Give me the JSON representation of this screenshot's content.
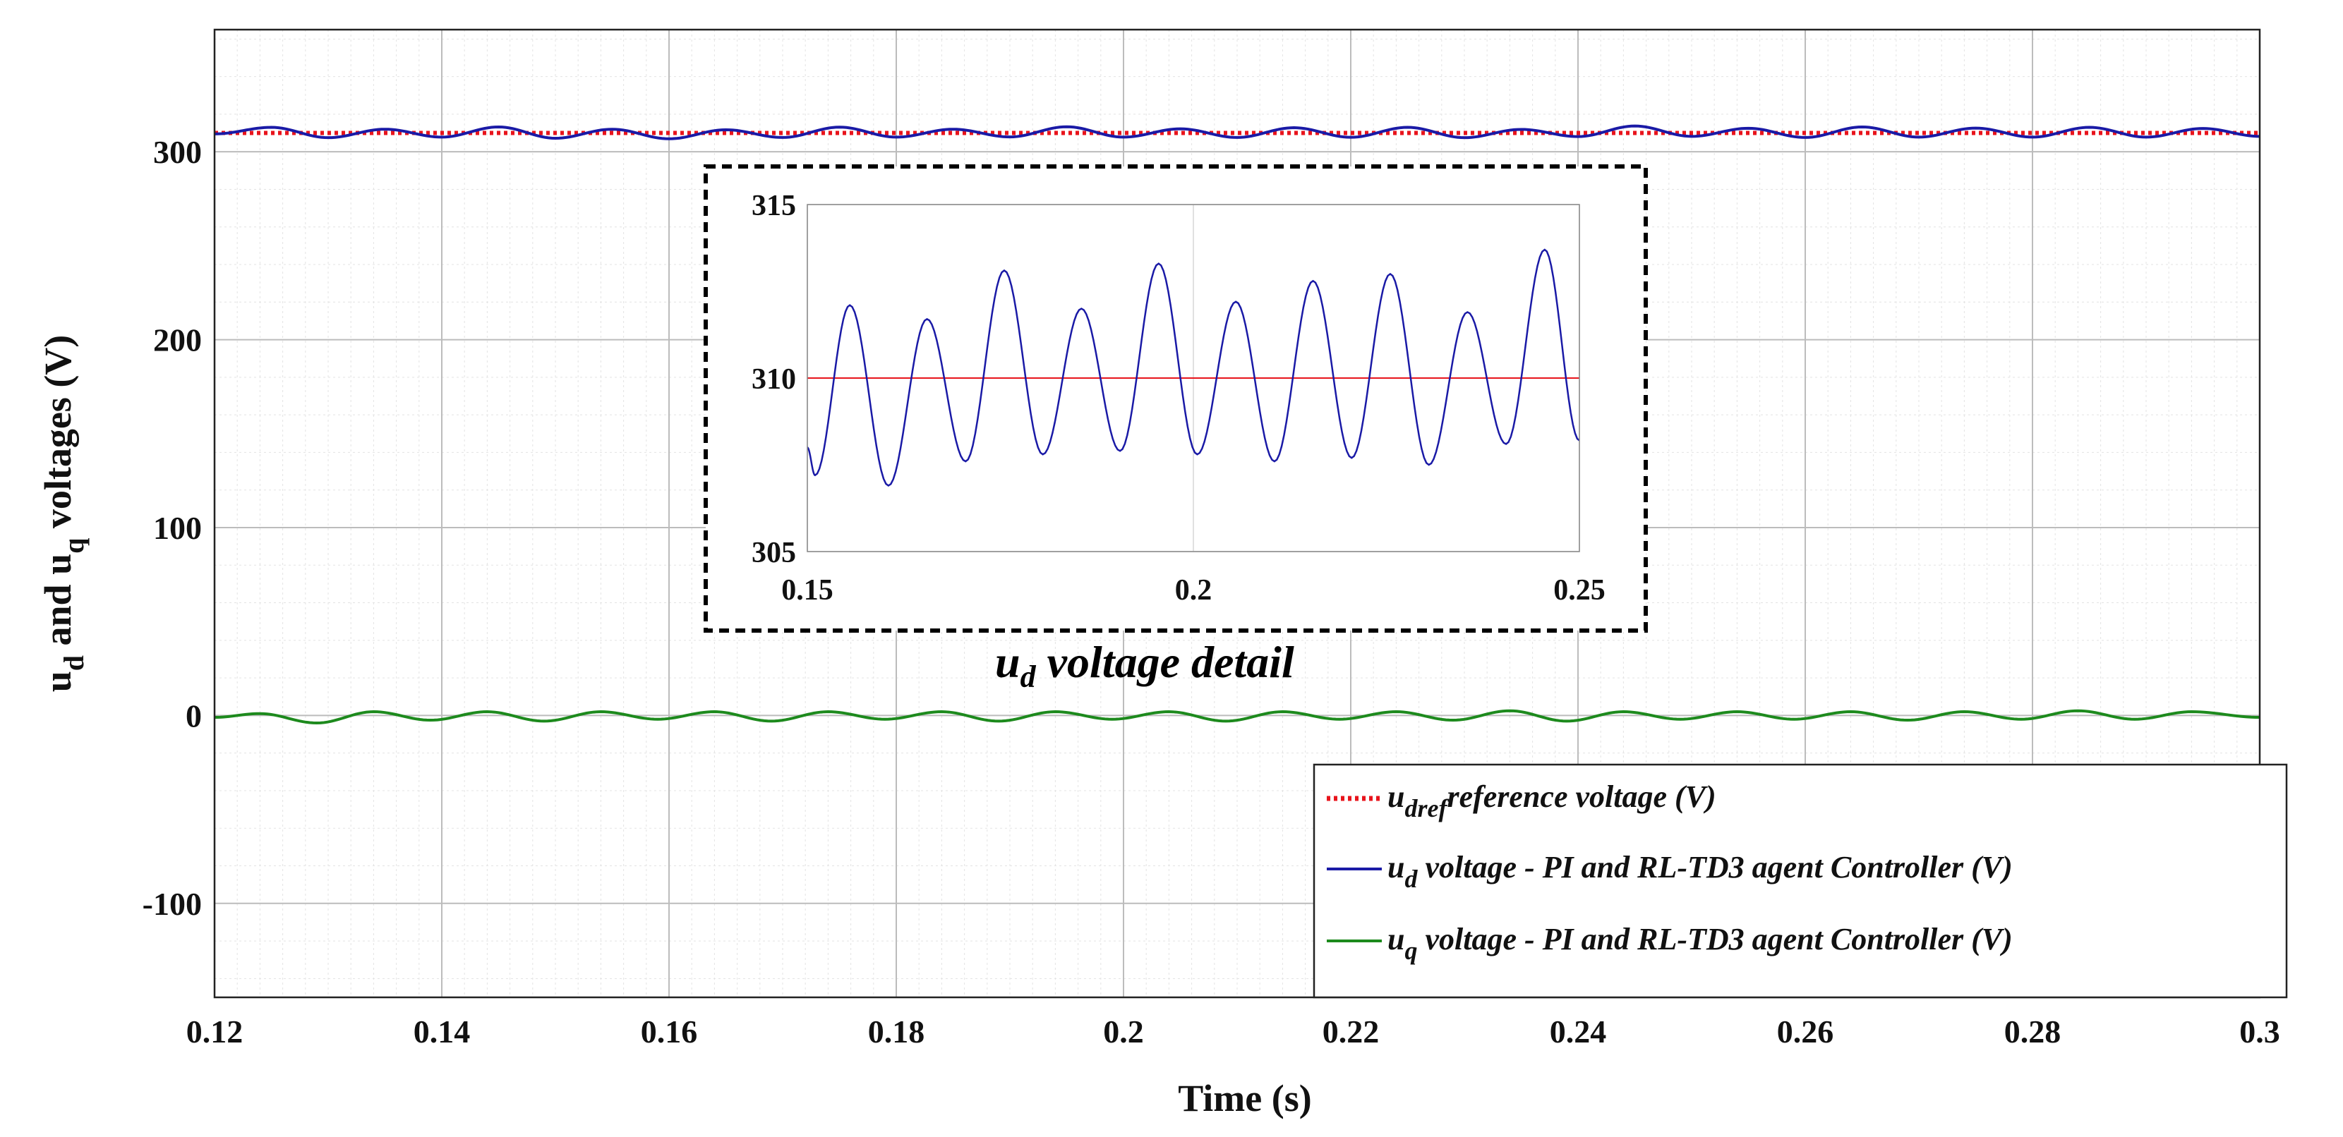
{
  "chart_data": [
    {
      "type": "line",
      "xlabel": "Time (s)",
      "ylabel": {
        "p1": "u",
        "s1": "d",
        "p2": " and u",
        "s2": "q",
        "p3": " voltages (V)"
      },
      "xlim": [
        0.12,
        0.3
      ],
      "ylim": [
        -150,
        365
      ],
      "xticks": [
        0.12,
        0.14,
        0.16,
        0.18,
        0.2,
        0.22,
        0.24,
        0.26,
        0.28,
        0.3
      ],
      "xtick_labels": [
        "0.12",
        "0.14",
        "0.16",
        "0.18",
        "0.2",
        "0.22",
        "0.24",
        "0.26",
        "0.28",
        "0.3"
      ],
      "yticks": [
        -100,
        0,
        100,
        200,
        300
      ],
      "ytick_labels": [
        "-100",
        "0",
        "100",
        "200",
        "300"
      ],
      "grid": true,
      "minor_grid": true,
      "legend_position": "bottom-right",
      "series": [
        {
          "key": "udref",
          "legend": {
            "main": "u",
            "sub": "dref",
            "rest": "reference voltage (V)"
          },
          "color": "#e8141c",
          "style": "dotted",
          "x": [
            0.12,
            0.3
          ],
          "y": [
            310,
            310
          ]
        },
        {
          "key": "ud",
          "legend": {
            "main": "u",
            "sub": "d",
            "rest": " voltage - PI and RL-TD3 agent Controller (V)"
          },
          "color": "#1a1aa6",
          "style": "solid",
          "x": [
            0.12,
            0.125,
            0.13,
            0.135,
            0.14,
            0.145,
            0.15,
            0.155,
            0.16,
            0.165,
            0.17,
            0.175,
            0.18,
            0.185,
            0.19,
            0.195,
            0.2,
            0.205,
            0.21,
            0.215,
            0.22,
            0.225,
            0.23,
            0.235,
            0.24,
            0.245,
            0.25,
            0.255,
            0.26,
            0.265,
            0.27,
            0.275,
            0.28,
            0.285,
            0.29,
            0.295,
            0.3
          ],
          "y": [
            309.5,
            313.0,
            307.5,
            312.0,
            307.8,
            313.2,
            307.2,
            312.0,
            306.9,
            311.7,
            307.6,
            313.1,
            307.8,
            312.0,
            307.9,
            313.3,
            307.8,
            312.2,
            307.6,
            312.8,
            307.7,
            313.0,
            307.5,
            311.9,
            308.1,
            313.7,
            308.2,
            312.5,
            307.6,
            313.2,
            307.8,
            312.6,
            307.8,
            313.0,
            307.8,
            312.4,
            308.2
          ]
        },
        {
          "key": "uq",
          "legend": {
            "main": "u",
            "sub": "q",
            "rest": " voltage - PI and RL-TD3 agent Controller (V)"
          },
          "color": "#1d8a1d",
          "style": "solid",
          "x": [
            0.12,
            0.124,
            0.129,
            0.134,
            0.139,
            0.144,
            0.149,
            0.154,
            0.159,
            0.164,
            0.169,
            0.174,
            0.179,
            0.184,
            0.189,
            0.194,
            0.199,
            0.204,
            0.209,
            0.214,
            0.219,
            0.224,
            0.229,
            0.234,
            0.239,
            0.244,
            0.249,
            0.254,
            0.259,
            0.264,
            0.269,
            0.274,
            0.279,
            0.284,
            0.289,
            0.294,
            0.3
          ],
          "y": [
            -1.0,
            1.0,
            -4.0,
            2.0,
            -2.5,
            2.0,
            -3.0,
            2.0,
            -2.0,
            2.0,
            -3.0,
            2.0,
            -2.0,
            2.0,
            -3.0,
            2.0,
            -2.0,
            2.0,
            -3.0,
            2.0,
            -2.0,
            2.0,
            -2.5,
            2.5,
            -3.0,
            2.0,
            -2.0,
            2.0,
            -2.0,
            2.0,
            -2.5,
            2.0,
            -2.0,
            2.5,
            -2.0,
            2.0,
            -1.0
          ]
        }
      ]
    },
    {
      "type": "line",
      "caption": {
        "main": "u",
        "sub": "d",
        "rest": " voltage detail"
      },
      "xlim": [
        0.15,
        0.25
      ],
      "ylim": [
        305,
        315
      ],
      "xticks": [
        0.15,
        0.2,
        0.25
      ],
      "xtick_labels": [
        "0.15",
        "0.2",
        "0.25"
      ],
      "yticks": [
        305,
        310,
        315
      ],
      "ytick_labels": [
        "305",
        "310",
        "315"
      ],
      "grid": true,
      "series": [
        {
          "key": "udref_detail",
          "color": "#e8141c",
          "style": "solid",
          "x": [
            0.15,
            0.25
          ],
          "y": [
            310,
            310
          ]
        },
        {
          "key": "ud_detail",
          "color": "#1a1aa6",
          "style": "solid",
          "x": [
            0.15,
            0.151,
            0.1555,
            0.1605,
            0.1655,
            0.1705,
            0.1755,
            0.1805,
            0.1855,
            0.1905,
            0.1955,
            0.2005,
            0.2055,
            0.2105,
            0.2155,
            0.2205,
            0.2255,
            0.2305,
            0.2355,
            0.2405,
            0.2455,
            0.25
          ],
          "y": [
            308.0,
            307.2,
            312.1,
            306.9,
            311.7,
            307.6,
            313.1,
            307.8,
            312.0,
            307.9,
            313.3,
            307.8,
            312.2,
            307.6,
            312.8,
            307.7,
            313.0,
            307.5,
            311.9,
            308.1,
            313.7,
            308.2
          ]
        }
      ]
    }
  ]
}
